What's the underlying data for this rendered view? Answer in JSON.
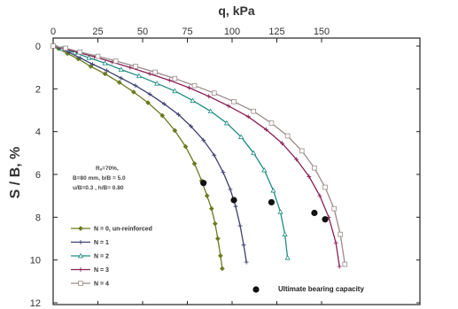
{
  "chart_data": {
    "type": "line",
    "xlabel": "q, kPa",
    "ylabel": "S / B, %",
    "xlim": [
      0,
      170
    ],
    "ylim": [
      12,
      0
    ],
    "x_ticks": [
      0,
      25,
      50,
      75,
      100,
      125,
      150
    ],
    "y_ticks": [
      0,
      2,
      4,
      6,
      8,
      10,
      12
    ],
    "x_axis_position": "top",
    "y_inverted": true,
    "grid": false,
    "legend_position": "bottom-left",
    "annotation_lines": [
      "Rₐ=70%,",
      "B=80 mm, b/B = 5.0",
      "u/B=0.3 , h/B= 0.80"
    ],
    "ultimate_label": "Ultimate bearing capacity",
    "series": [
      {
        "name": "N = 0, un-reinforced",
        "color": "#6b7a1f",
        "marker": "filled-diamond",
        "x": [
          0,
          3,
          8,
          14,
          21,
          29,
          37,
          45,
          53,
          61,
          68,
          74,
          79,
          83,
          86,
          88.5,
          90.5,
          92,
          93.5,
          94.5
        ],
        "y": [
          0,
          0.12,
          0.35,
          0.6,
          0.95,
          1.3,
          1.7,
          2.15,
          2.65,
          3.25,
          3.95,
          4.7,
          5.5,
          6.3,
          7.0,
          7.6,
          8.3,
          9.0,
          9.8,
          10.4
        ]
      },
      {
        "name": "N = 1",
        "color": "#3c3f70",
        "marker": "cross",
        "x": [
          0,
          4,
          9,
          15,
          22,
          30,
          38,
          46,
          54,
          62,
          70,
          77,
          84,
          90,
          95,
          99,
          102,
          104.5,
          106.5,
          108
        ],
        "y": [
          0,
          0.12,
          0.3,
          0.55,
          0.85,
          1.15,
          1.5,
          1.85,
          2.25,
          2.7,
          3.2,
          3.75,
          4.4,
          5.1,
          5.9,
          6.7,
          7.5,
          8.4,
          9.3,
          10.1
        ]
      },
      {
        "name": "N = 2",
        "color": "#1e8c82",
        "marker": "triangle",
        "x": [
          0,
          5,
          12,
          20,
          29,
          38,
          48,
          58,
          68,
          78,
          88,
          97,
          105,
          112,
          118,
          123,
          127,
          129.5,
          131
        ],
        "y": [
          0,
          0.12,
          0.3,
          0.55,
          0.8,
          1.1,
          1.4,
          1.75,
          2.1,
          2.55,
          3.05,
          3.6,
          4.25,
          5.0,
          5.8,
          6.75,
          7.75,
          8.8,
          9.9
        ]
      },
      {
        "name": "N = 3",
        "color": "#8a1f55",
        "marker": "cross",
        "x": [
          0,
          6,
          14,
          23,
          33,
          43,
          54,
          65,
          76,
          87,
          98,
          109,
          119,
          128,
          136,
          143,
          149,
          154,
          158,
          160
        ],
        "y": [
          0,
          0.12,
          0.3,
          0.5,
          0.75,
          1.0,
          1.3,
          1.6,
          1.95,
          2.35,
          2.8,
          3.3,
          3.9,
          4.55,
          5.3,
          6.1,
          7.0,
          8.0,
          9.2,
          10.3
        ]
      },
      {
        "name": "N = 4",
        "color": "#9a8a8a",
        "marker": "open-square",
        "x": [
          0,
          7,
          15,
          25,
          35,
          46,
          57,
          68,
          79,
          90,
          101,
          112,
          122,
          131,
          139,
          146,
          152,
          157,
          160.5,
          163
        ],
        "y": [
          0,
          0.1,
          0.28,
          0.48,
          0.7,
          0.95,
          1.22,
          1.52,
          1.85,
          2.2,
          2.6,
          3.05,
          3.6,
          4.2,
          4.9,
          5.7,
          6.6,
          7.6,
          8.8,
          10.2
        ]
      }
    ],
    "ultimate_points": [
      {
        "x": 84,
        "y": 6.4
      },
      {
        "x": 101,
        "y": 7.2
      },
      {
        "x": 122,
        "y": 7.3
      },
      {
        "x": 146,
        "y": 7.8
      },
      {
        "x": 152,
        "y": 8.1
      }
    ]
  }
}
